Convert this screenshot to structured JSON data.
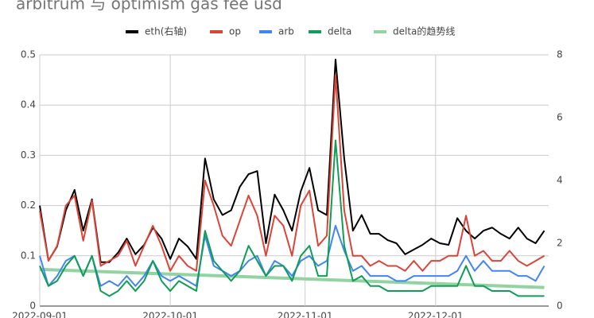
{
  "chart_data": {
    "type": "line",
    "title": "arbitrum 与 optimism gas fee usd",
    "x": [
      "2022-09-01",
      "2022-09-03",
      "2022-09-05",
      "2022-09-07",
      "2022-09-09",
      "2022-09-11",
      "2022-09-13",
      "2022-09-15",
      "2022-09-17",
      "2022-09-19",
      "2022-09-21",
      "2022-09-23",
      "2022-09-25",
      "2022-09-27",
      "2022-09-29",
      "2022-10-01",
      "2022-10-03",
      "2022-10-05",
      "2022-10-07",
      "2022-10-09",
      "2022-10-11",
      "2022-10-13",
      "2022-10-15",
      "2022-10-17",
      "2022-10-19",
      "2022-10-21",
      "2022-10-23",
      "2022-10-25",
      "2022-10-27",
      "2022-10-29",
      "2022-10-31",
      "2022-11-02",
      "2022-11-04",
      "2022-11-06",
      "2022-11-08",
      "2022-11-10",
      "2022-11-12",
      "2022-11-14",
      "2022-11-16",
      "2022-11-18",
      "2022-11-20",
      "2022-11-22",
      "2022-11-24",
      "2022-11-26",
      "2022-11-28",
      "2022-11-30",
      "2022-12-02",
      "2022-12-04",
      "2022-12-06",
      "2022-12-08",
      "2022-12-10",
      "2022-12-12",
      "2022-12-14",
      "2022-12-16",
      "2022-12-18",
      "2022-12-20",
      "2022-12-22",
      "2022-12-24",
      "2022-12-26"
    ],
    "series": [
      {
        "name": "eth(右轴)",
        "color": "#000000",
        "axis": "y2",
        "values": [
          3.2,
          1.45,
          1.9,
          3.05,
          3.7,
          2.4,
          3.4,
          1.4,
          1.4,
          1.7,
          2.15,
          1.65,
          1.95,
          2.5,
          2.15,
          1.5,
          2.15,
          1.9,
          1.5,
          4.7,
          3.4,
          2.9,
          3.05,
          3.8,
          4.2,
          4.3,
          2.0,
          3.55,
          3.05,
          2.4,
          3.65,
          4.4,
          3.05,
          2.9,
          7.85,
          4.7,
          2.4,
          2.9,
          2.3,
          2.3,
          2.1,
          2.0,
          1.65,
          1.8,
          1.95,
          2.15,
          2.0,
          1.95,
          2.8,
          2.4,
          2.15,
          2.4,
          2.5,
          2.3,
          2.15,
          2.5,
          2.15,
          2.0,
          2.4
        ]
      },
      {
        "name": "op",
        "color": "#db4437",
        "values": [
          0.19,
          0.09,
          0.12,
          0.2,
          0.22,
          0.13,
          0.21,
          0.08,
          0.09,
          0.1,
          0.13,
          0.08,
          0.12,
          0.16,
          0.12,
          0.07,
          0.1,
          0.08,
          0.07,
          0.25,
          0.2,
          0.14,
          0.12,
          0.17,
          0.22,
          0.18,
          0.1,
          0.18,
          0.16,
          0.1,
          0.2,
          0.23,
          0.12,
          0.14,
          0.46,
          0.19,
          0.1,
          0.1,
          0.08,
          0.09,
          0.08,
          0.08,
          0.07,
          0.09,
          0.07,
          0.09,
          0.09,
          0.1,
          0.1,
          0.18,
          0.1,
          0.11,
          0.09,
          0.09,
          0.11,
          0.09,
          0.08,
          0.09,
          0.1
        ]
      },
      {
        "name": "arb",
        "color": "#4285f4",
        "values": [
          0.1,
          0.04,
          0.06,
          0.09,
          0.1,
          0.06,
          0.1,
          0.04,
          0.05,
          0.04,
          0.06,
          0.04,
          0.06,
          0.09,
          0.06,
          0.05,
          0.06,
          0.05,
          0.04,
          0.14,
          0.08,
          0.07,
          0.06,
          0.07,
          0.09,
          0.1,
          0.06,
          0.09,
          0.08,
          0.06,
          0.09,
          0.1,
          0.08,
          0.09,
          0.16,
          0.11,
          0.07,
          0.08,
          0.06,
          0.06,
          0.06,
          0.05,
          0.05,
          0.06,
          0.06,
          0.06,
          0.06,
          0.06,
          0.07,
          0.1,
          0.07,
          0.09,
          0.07,
          0.07,
          0.07,
          0.06,
          0.06,
          0.05,
          0.08
        ]
      },
      {
        "name": "delta",
        "color": "#0f9d58",
        "values": [
          0.08,
          0.04,
          0.05,
          0.08,
          0.1,
          0.06,
          0.1,
          0.03,
          0.02,
          0.03,
          0.05,
          0.03,
          0.05,
          0.09,
          0.05,
          0.03,
          0.05,
          0.04,
          0.03,
          0.15,
          0.09,
          0.07,
          0.05,
          0.07,
          0.12,
          0.09,
          0.06,
          0.08,
          0.08,
          0.05,
          0.1,
          0.12,
          0.06,
          0.06,
          0.33,
          0.12,
          0.05,
          0.06,
          0.04,
          0.04,
          0.03,
          0.03,
          0.03,
          0.03,
          0.03,
          0.04,
          0.04,
          0.04,
          0.04,
          0.08,
          0.04,
          0.04,
          0.03,
          0.03,
          0.03,
          0.02,
          0.02,
          0.02,
          0.02
        ]
      }
    ],
    "trendline": {
      "name": "delta的趋势线",
      "color": "#93d3a2",
      "x": [
        "2022-09-01",
        "2022-12-26"
      ],
      "values": [
        0.073,
        0.037
      ]
    },
    "xlim": [
      "2022-09-01",
      "2022-12-27"
    ],
    "xticks": [
      "2022-09-01",
      "2022-10-01",
      "2022-11-01",
      "2022-12-01"
    ],
    "ylim": [
      0,
      0.5
    ],
    "yticks": [
      0,
      0.1,
      0.2,
      0.3,
      0.4,
      0.5
    ],
    "y2lim": [
      0,
      8
    ],
    "y2ticks": [
      0,
      2,
      4,
      6,
      8
    ],
    "grid": true
  }
}
